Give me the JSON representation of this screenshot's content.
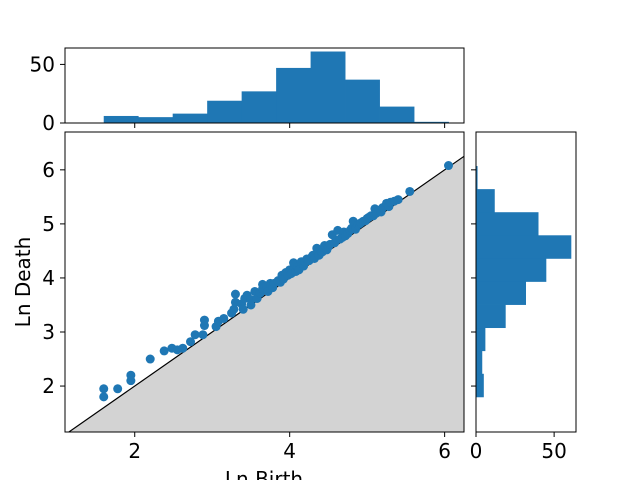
{
  "chart_data": [
    {
      "type": "scatter",
      "role": "main",
      "xlabel": "Ln Birth",
      "ylabel": "Ln Death",
      "xlim": [
        1.1,
        6.25
      ],
      "ylim": [
        1.15,
        6.7
      ],
      "xticks": [
        2,
        4,
        6
      ],
      "yticks": [
        2,
        3,
        4,
        5,
        6
      ],
      "diagonal": true,
      "fill_below_diagonal": "#d3d3d3",
      "point_color": "#1f77b4",
      "points": [
        [
          1.6,
          1.8
        ],
        [
          1.6,
          1.95
        ],
        [
          1.78,
          1.95
        ],
        [
          1.95,
          2.1
        ],
        [
          1.95,
          2.2
        ],
        [
          2.2,
          2.5
        ],
        [
          2.38,
          2.65
        ],
        [
          2.48,
          2.7
        ],
        [
          2.55,
          2.67
        ],
        [
          2.62,
          2.7
        ],
        [
          2.72,
          2.82
        ],
        [
          2.78,
          2.95
        ],
        [
          2.88,
          2.95
        ],
        [
          2.9,
          3.12
        ],
        [
          2.9,
          3.22
        ],
        [
          3.05,
          3.1
        ],
        [
          3.08,
          3.2
        ],
        [
          3.15,
          3.25
        ],
        [
          3.25,
          3.35
        ],
        [
          3.28,
          3.42
        ],
        [
          3.3,
          3.55
        ],
        [
          3.3,
          3.7
        ],
        [
          3.38,
          3.52
        ],
        [
          3.4,
          3.42
        ],
        [
          3.42,
          3.62
        ],
        [
          3.45,
          3.68
        ],
        [
          3.5,
          3.5
        ],
        [
          3.5,
          3.6
        ],
        [
          3.55,
          3.75
        ],
        [
          3.58,
          3.62
        ],
        [
          3.62,
          3.72
        ],
        [
          3.65,
          3.8
        ],
        [
          3.65,
          3.88
        ],
        [
          3.7,
          3.85
        ],
        [
          3.72,
          3.75
        ],
        [
          3.75,
          3.9
        ],
        [
          3.78,
          3.82
        ],
        [
          3.8,
          3.9
        ],
        [
          3.85,
          3.95
        ],
        [
          3.88,
          3.92
        ],
        [
          3.9,
          4.05
        ],
        [
          3.92,
          3.98
        ],
        [
          3.95,
          4.1
        ],
        [
          3.98,
          4.05
        ],
        [
          4.0,
          4.15
        ],
        [
          4.02,
          4.08
        ],
        [
          4.05,
          4.28
        ],
        [
          4.08,
          4.12
        ],
        [
          4.1,
          4.2
        ],
        [
          4.12,
          4.15
        ],
        [
          4.15,
          4.3
        ],
        [
          4.18,
          4.22
        ],
        [
          4.2,
          4.3
        ],
        [
          4.22,
          4.35
        ],
        [
          4.25,
          4.32
        ],
        [
          4.28,
          4.38
        ],
        [
          4.3,
          4.42
        ],
        [
          4.32,
          4.36
        ],
        [
          4.35,
          4.55
        ],
        [
          4.38,
          4.42
        ],
        [
          4.4,
          4.5
        ],
        [
          4.42,
          4.48
        ],
        [
          4.45,
          4.6
        ],
        [
          4.48,
          4.52
        ],
        [
          4.5,
          4.58
        ],
        [
          4.52,
          4.62
        ],
        [
          4.55,
          4.8
        ],
        [
          4.58,
          4.65
        ],
        [
          4.6,
          4.7
        ],
        [
          4.62,
          4.88
        ],
        [
          4.65,
          4.72
        ],
        [
          4.68,
          4.75
        ],
        [
          4.7,
          4.85
        ],
        [
          4.72,
          4.78
        ],
        [
          4.75,
          4.82
        ],
        [
          4.78,
          4.88
        ],
        [
          4.8,
          4.92
        ],
        [
          4.82,
          5.05
        ],
        [
          4.85,
          4.9
        ],
        [
          4.88,
          4.98
        ],
        [
          4.9,
          5.0
        ],
        [
          4.92,
          5.02
        ],
        [
          4.95,
          5.05
        ],
        [
          4.98,
          5.06
        ],
        [
          5.0,
          5.1
        ],
        [
          5.02,
          5.12
        ],
        [
          5.05,
          5.15
        ],
        [
          5.08,
          5.15
        ],
        [
          5.1,
          5.28
        ],
        [
          5.12,
          5.2
        ],
        [
          5.15,
          5.25
        ],
        [
          5.18,
          5.22
        ],
        [
          5.2,
          5.3
        ],
        [
          5.25,
          5.38
        ],
        [
          5.28,
          5.32
        ],
        [
          5.3,
          5.4
        ],
        [
          5.35,
          5.42
        ],
        [
          5.4,
          5.45
        ],
        [
          5.55,
          5.6
        ],
        [
          6.05,
          6.08
        ]
      ]
    },
    {
      "type": "bar",
      "role": "top-histogram",
      "orientation": "vertical",
      "bin_edges": [
        1.6,
        2.045,
        2.49,
        2.935,
        3.38,
        3.825,
        4.27,
        4.715,
        5.16,
        5.605,
        6.05
      ],
      "values": [
        6,
        5,
        8,
        19,
        27,
        47,
        61,
        37,
        14,
        1
      ],
      "ylim": [
        0,
        64
      ],
      "yticks": [
        0,
        50
      ],
      "color": "#1f77b4"
    },
    {
      "type": "bar",
      "role": "right-histogram",
      "orientation": "horizontal",
      "bin_edges": [
        1.8,
        2.227,
        2.654,
        3.081,
        3.508,
        3.935,
        4.362,
        4.789,
        5.216,
        5.643,
        6.07
      ],
      "values": [
        5,
        4,
        6,
        19,
        32,
        45,
        61,
        40,
        12,
        1
      ],
      "xlim": [
        0,
        64
      ],
      "xticks": [
        0,
        50
      ],
      "color": "#1f77b4"
    }
  ]
}
